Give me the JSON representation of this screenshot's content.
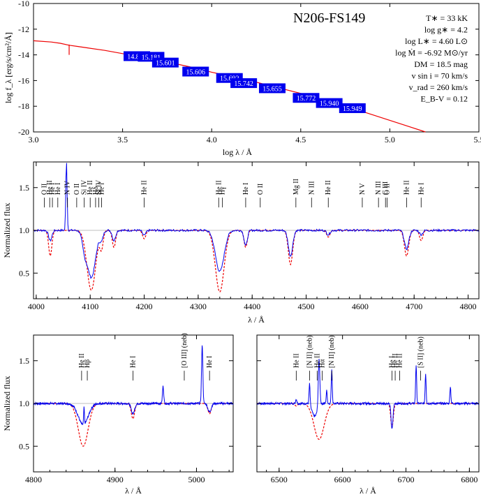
{
  "colors": {
    "observed": "#0000ee",
    "model": "#ee0000",
    "box": "#0000ee",
    "frame": "#000000"
  },
  "chart_data": [
    {
      "type": "line",
      "panel": "sed",
      "title": "N206-FS149",
      "xlabel": "log λ / Å",
      "ylabel": "log f_λ [erg/s/cm²/Å]",
      "xlim": [
        3.0,
        5.5
      ],
      "ylim": [
        -20,
        -10
      ],
      "xticks": [
        "3.0",
        "3.5",
        "4.0",
        "4.5",
        "5.0",
        "5.5"
      ],
      "yticks": [
        "-20",
        "-18",
        "-16",
        "-14",
        "-12",
        "-10"
      ],
      "parameters": [
        "T∗ = 33 kK",
        "log g∗ = 4.2",
        "log L∗ = 4.60 L⊙",
        "log Ṁ = -6.92 M⊙/yr",
        "DM = 18.5 mag",
        "v sin i = 70 km/s",
        "v_rad = 260 km/s",
        "E_B-V = 0.12"
      ],
      "model_sed": {
        "x": [
          3.0,
          3.1,
          3.15,
          3.2,
          3.25,
          3.3,
          3.4,
          3.5,
          3.6,
          3.7,
          3.8,
          3.9,
          4.0,
          4.1,
          4.2,
          4.3,
          4.4,
          4.5,
          4.6,
          4.7,
          4.8,
          4.9,
          5.0,
          5.1,
          5.2
        ],
        "y": [
          -12.9,
          -13.0,
          -13.1,
          -13.25,
          -13.35,
          -13.45,
          -13.65,
          -13.9,
          -14.15,
          -14.4,
          -14.7,
          -15.0,
          -15.35,
          -15.65,
          -15.95,
          -16.3,
          -16.65,
          -17.0,
          -17.4,
          -17.8,
          -18.2,
          -18.65,
          -19.1,
          -19.55,
          -20.0
        ]
      },
      "photometry": [
        {
          "label": "14.884",
          "x": 3.58,
          "y": -14.1
        },
        {
          "label": "15.181",
          "x": 3.66,
          "y": -14.15
        },
        {
          "label": "15.601",
          "x": 3.74,
          "y": -14.6
        },
        {
          "label": "15.606",
          "x": 3.91,
          "y": -15.3
        },
        {
          "label": "15.692",
          "x": 4.1,
          "y": -15.8
        },
        {
          "label": "15.742",
          "x": 4.18,
          "y": -16.2
        },
        {
          "label": "15.655",
          "x": 4.34,
          "y": -16.6
        },
        {
          "label": "15.772",
          "x": 4.53,
          "y": -17.35
        },
        {
          "label": "15.940",
          "x": 4.66,
          "y": -17.75
        },
        {
          "label": "15.949",
          "x": 4.79,
          "y": -18.15
        }
      ]
    },
    {
      "type": "line",
      "panel": "spectrum-blue",
      "xlabel": "λ / Å",
      "ylabel": "Normalized flux",
      "xlim": [
        3995,
        4820
      ],
      "ylim": [
        0.2,
        1.8
      ],
      "xticks": [
        "4000",
        "4100",
        "4200",
        "4300",
        "4400",
        "4500",
        "4600",
        "4700",
        "4800"
      ],
      "yticks": [
        "0.5",
        "1.0",
        "1.5"
      ],
      "continuum": 1.0,
      "observed": [
        {
          "x": 4026,
          "depth": 0.12,
          "w": 3
        },
        {
          "x": 4056,
          "depth": -0.82,
          "w": 1.2
        },
        {
          "x": 4089,
          "depth": 0.15,
          "w": 4
        },
        {
          "x": 4102,
          "depth": 0.55,
          "w": 8
        },
        {
          "x": 4121,
          "depth": 0.1,
          "w": 3
        },
        {
          "x": 4144,
          "depth": 0.12,
          "w": 3
        },
        {
          "x": 4200,
          "depth": 0.06,
          "w": 3
        },
        {
          "x": 4340,
          "depth": 0.48,
          "w": 8
        },
        {
          "x": 4388,
          "depth": 0.18,
          "w": 3
        },
        {
          "x": 4471,
          "depth": 0.3,
          "w": 4
        },
        {
          "x": 4541,
          "depth": 0.05,
          "w": 3
        },
        {
          "x": 4686,
          "depth": 0.22,
          "w": 4
        },
        {
          "x": 4713,
          "depth": 0.05,
          "w": 3
        }
      ],
      "model": [
        {
          "x": 4026,
          "depth": 0.3,
          "w": 3
        },
        {
          "x": 4102,
          "depth": 0.7,
          "w": 8
        },
        {
          "x": 4121,
          "depth": 0.2,
          "w": 3
        },
        {
          "x": 4144,
          "depth": 0.2,
          "w": 3
        },
        {
          "x": 4200,
          "depth": 0.1,
          "w": 3
        },
        {
          "x": 4340,
          "depth": 0.72,
          "w": 8
        },
        {
          "x": 4388,
          "depth": 0.2,
          "w": 3
        },
        {
          "x": 4471,
          "depth": 0.4,
          "w": 4
        },
        {
          "x": 4541,
          "depth": 0.08,
          "w": 3
        },
        {
          "x": 4686,
          "depth": 0.3,
          "w": 4
        },
        {
          "x": 4713,
          "depth": 0.12,
          "w": 3
        }
      ],
      "line_ids": [
        {
          "label": "O II",
          "x": 4015
        },
        {
          "label": "He II",
          "x": 4025
        },
        {
          "label": "He I",
          "x": 4030
        },
        {
          "label": "He I",
          "x": 4040
        },
        {
          "label": "N IV",
          "x": 4058
        },
        {
          "label": "O II",
          "x": 4075
        },
        {
          "label": "Si IV",
          "x": 4089
        },
        {
          "label": "He II",
          "x": 4100
        },
        {
          "label": "Hδ",
          "x": 4110
        },
        {
          "label": "Si IV",
          "x": 4116
        },
        {
          "label": "He I",
          "x": 4121
        },
        {
          "label": "He II",
          "x": 4200
        },
        {
          "label": "He II",
          "x": 4338
        },
        {
          "label": "Hγ",
          "x": 4345
        },
        {
          "label": "He I",
          "x": 4388
        },
        {
          "label": "O II",
          "x": 4415
        },
        {
          "label": "Mg II",
          "x": 4481
        },
        {
          "label": "N III",
          "x": 4510
        },
        {
          "label": "He II",
          "x": 4541
        },
        {
          "label": "N V",
          "x": 4604
        },
        {
          "label": "N III",
          "x": 4634
        },
        {
          "label": "C III",
          "x": 4647
        },
        {
          "label": "O II",
          "x": 4650
        },
        {
          "label": "He II",
          "x": 4686
        },
        {
          "label": "He I",
          "x": 4713
        }
      ]
    },
    {
      "type": "line",
      "panel": "spectrum-hbeta",
      "xlabel": "λ / Å",
      "ylabel": "Normalized flux",
      "xlim": [
        4800,
        5045
      ],
      "ylim": [
        0.2,
        1.8
      ],
      "xticks": [
        "4800",
        "4900",
        "5000"
      ],
      "yticks": [
        "0.5",
        "1.0",
        "1.5"
      ],
      "continuum": 1.0,
      "observed": [
        {
          "x": 4861,
          "depth": 0.25,
          "w": 6
        },
        {
          "x": 4862,
          "depth": -0.2,
          "w": 0.5
        },
        {
          "x": 4922,
          "depth": 0.12,
          "w": 2
        },
        {
          "x": 4959,
          "depth": -0.2,
          "w": 0.8
        },
        {
          "x": 5007,
          "depth": -0.68,
          "w": 0.8
        },
        {
          "x": 5016,
          "depth": 0.1,
          "w": 2
        }
      ],
      "model": [
        {
          "x": 4861,
          "depth": 0.5,
          "w": 6
        },
        {
          "x": 4922,
          "depth": 0.18,
          "w": 2
        },
        {
          "x": 5016,
          "depth": 0.12,
          "w": 2
        }
      ],
      "line_ids": [
        {
          "label": "He II",
          "x": 4859
        },
        {
          "label": "Hβ",
          "x": 4866
        },
        {
          "label": "He I",
          "x": 4922
        },
        {
          "label": "[O III] (neb)",
          "x": 4985
        },
        {
          "label": "He I",
          "x": 5016
        }
      ]
    },
    {
      "type": "line",
      "panel": "spectrum-halpha",
      "xlabel": "λ / Å",
      "xlim": [
        6465,
        6815
      ],
      "ylim": [
        0.2,
        1.8
      ],
      "xticks": [
        "6500",
        "6600",
        "6700",
        "6800"
      ],
      "continuum": 1.0,
      "observed": [
        {
          "x": 6527,
          "depth": -0.05,
          "w": 1
        },
        {
          "x": 6548,
          "depth": -0.25,
          "w": 0.8
        },
        {
          "x": 6556,
          "depth": 0.15,
          "w": 4
        },
        {
          "x": 6563,
          "depth": -0.55,
          "w": 1.2
        },
        {
          "x": 6575,
          "depth": -0.15,
          "w": 0.8
        },
        {
          "x": 6583,
          "depth": -0.4,
          "w": 0.8
        },
        {
          "x": 6678,
          "depth": 0.3,
          "w": 1.5
        },
        {
          "x": 6716,
          "depth": -0.45,
          "w": 0.8
        },
        {
          "x": 6731,
          "depth": -0.35,
          "w": 0.8
        },
        {
          "x": 6770,
          "depth": -0.2,
          "w": 0.8
        }
      ],
      "model": [
        {
          "x": 6527,
          "depth": 0.03,
          "w": 2
        },
        {
          "x": 6563,
          "depth": 0.42,
          "w": 8
        },
        {
          "x": 6678,
          "depth": 0.28,
          "w": 2
        }
      ],
      "line_ids": [
        {
          "label": "He II",
          "x": 6527
        },
        {
          "label": "[N II] (neb)",
          "x": 6548
        },
        {
          "label": "He II",
          "x": 6560
        },
        {
          "label": "Hα",
          "x": 6568
        },
        {
          "label": "[N II] (neb)",
          "x": 6583
        },
        {
          "label": "He I",
          "x": 6678
        },
        {
          "label": "He II",
          "x": 6683
        },
        {
          "label": "He II",
          "x": 6690
        },
        {
          "label": "[S II] (neb)",
          "x": 6723
        }
      ]
    }
  ]
}
